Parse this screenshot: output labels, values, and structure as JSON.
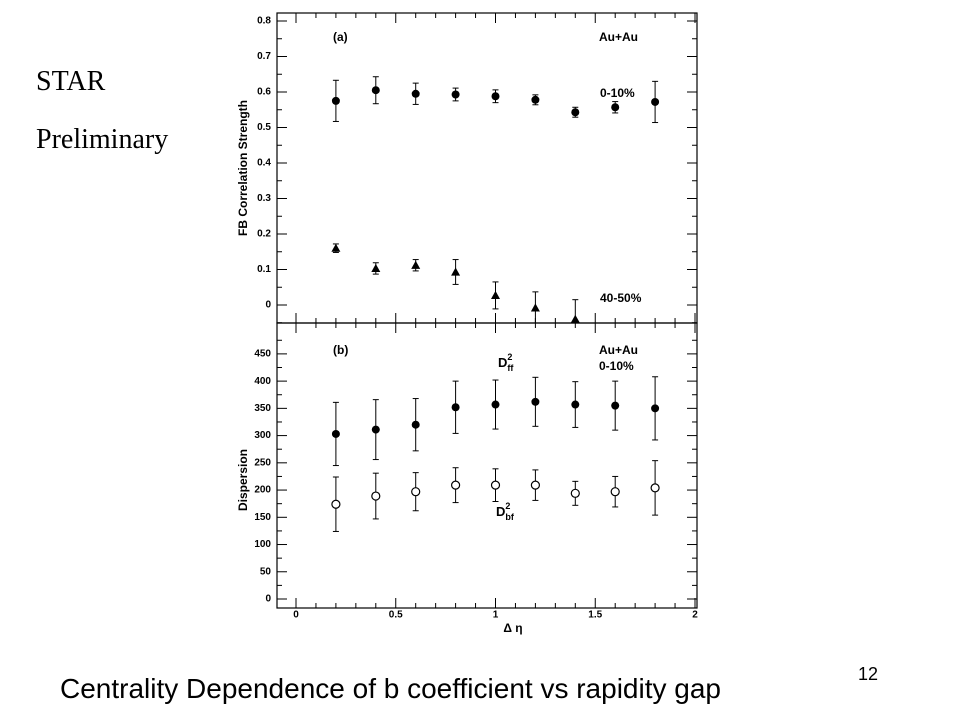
{
  "slide": {
    "star_label": "STAR",
    "preliminary_label": "Preliminary",
    "caption": "Centrality Dependence of b coefficient vs rapidity gap",
    "page_number": "12"
  },
  "chart_data": [
    {
      "panel": "(a)",
      "type": "scatter",
      "title": "",
      "xlabel": "",
      "ylabel": "FB Correlation Strength",
      "xlim": [
        -0.1,
        2.0
      ],
      "ylim": [
        -0.05,
        0.8
      ],
      "x_ticks": [
        "0",
        "0.5",
        "1",
        "1.5",
        "2"
      ],
      "y_ticks": [
        "0",
        "0.1",
        "0.2",
        "0.3",
        "0.4",
        "0.5",
        "0.6",
        "0.7",
        "0.8"
      ],
      "system_label": "Au+Au",
      "series": [
        {
          "name": "0-10%",
          "marker": "filled-circle",
          "x": [
            0.2,
            0.4,
            0.6,
            0.8,
            1.0,
            1.2,
            1.4,
            1.6,
            1.8
          ],
          "y": [
            0.575,
            0.605,
            0.595,
            0.593,
            0.588,
            0.578,
            0.543,
            0.557,
            0.572
          ],
          "err": [
            0.058,
            0.038,
            0.03,
            0.018,
            0.018,
            0.014,
            0.014,
            0.016,
            0.058
          ]
        },
        {
          "name": "40-50%",
          "marker": "filled-triangle",
          "x": [
            0.2,
            0.4,
            0.6,
            0.8,
            1.0,
            1.2,
            1.4
          ],
          "y": [
            0.16,
            0.103,
            0.112,
            0.093,
            0.027,
            -0.008,
            -0.04
          ],
          "err": [
            0.012,
            0.016,
            0.016,
            0.035,
            0.038,
            0.045,
            0.055
          ]
        }
      ]
    },
    {
      "panel": "(b)",
      "type": "scatter",
      "title": "",
      "xlabel": "Δ η",
      "ylabel": "Dispersion",
      "xlim": [
        -0.1,
        2.0
      ],
      "ylim": [
        0,
        490
      ],
      "x_ticks": [
        "0",
        "0.5",
        "1",
        "1.5",
        "2"
      ],
      "y_ticks": [
        "0",
        "50",
        "100",
        "150",
        "200",
        "250",
        "300",
        "350",
        "400",
        "450"
      ],
      "system_label": "Au+Au",
      "centrality_label": "0-10%",
      "series": [
        {
          "name": "D",
          "subscript": "ff",
          "superscript": "2",
          "marker": "filled-circle",
          "x": [
            0.2,
            0.4,
            0.6,
            0.8,
            1.0,
            1.2,
            1.4,
            1.6,
            1.8
          ],
          "y": [
            303,
            311,
            320,
            352,
            357,
            362,
            357,
            355,
            350
          ],
          "err": [
            58,
            55,
            48,
            48,
            45,
            45,
            42,
            45,
            58
          ]
        },
        {
          "name": "D",
          "subscript": "bf",
          "superscript": "2",
          "marker": "open-circle",
          "x": [
            0.2,
            0.4,
            0.6,
            0.8,
            1.0,
            1.2,
            1.4,
            1.6,
            1.8
          ],
          "y": [
            174,
            189,
            197,
            209,
            209,
            209,
            194,
            197,
            204
          ],
          "err": [
            50,
            42,
            35,
            32,
            30,
            28,
            22,
            28,
            50
          ]
        }
      ]
    }
  ]
}
